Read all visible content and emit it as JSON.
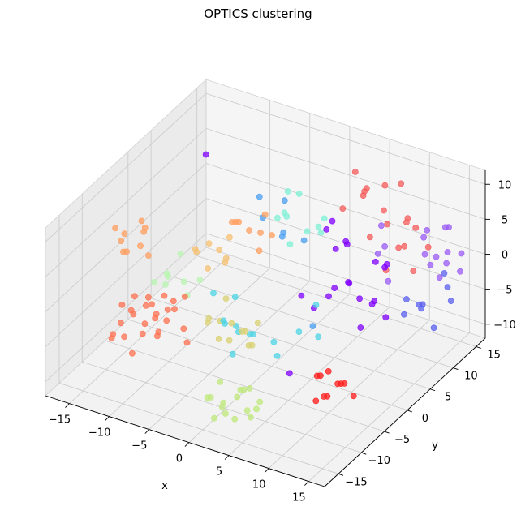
{
  "chart_data": {
    "type": "scatter",
    "title": "OPTICS clustering",
    "xlabel": "x",
    "ylabel": "y",
    "zlabel": "",
    "xlim": [
      -18,
      17
    ],
    "ylim": [
      -18,
      17
    ],
    "zlim": [
      -12,
      12
    ],
    "xticks": [
      -15,
      -10,
      -5,
      0,
      5,
      10,
      15
    ],
    "yticks": [
      -15,
      -10,
      -5,
      0,
      5,
      10,
      15
    ],
    "zticks": [
      -10,
      -5,
      0,
      5,
      10
    ],
    "grid": true,
    "marker_alpha": 0.75,
    "clusters": [
      {
        "color": "#8000ff",
        "points": [
          [
            4,
            5,
            6
          ],
          [
            6,
            6,
            4
          ],
          [
            8,
            3,
            1
          ],
          [
            10,
            5,
            -2
          ],
          [
            5,
            8,
            -3
          ],
          [
            7,
            7,
            -4
          ],
          [
            3,
            4,
            -5
          ],
          [
            9,
            9,
            0
          ],
          [
            11,
            6,
            3
          ],
          [
            6,
            2,
            -1
          ],
          [
            4,
            7,
            2
          ],
          [
            8,
            8,
            -5
          ],
          [
            7,
            4,
            6
          ],
          [
            2,
            3,
            -3
          ],
          [
            10,
            2,
            -4
          ],
          [
            5,
            5,
            -2
          ],
          [
            -14,
            10,
            7
          ],
          [
            8,
            -10,
            -4
          ],
          [
            3,
            8,
            5
          ],
          [
            12,
            4,
            -3
          ],
          [
            9,
            7,
            2
          ]
        ]
      },
      {
        "color": "#5a5ff0",
        "points": [
          [
            12,
            12,
            -6
          ],
          [
            13,
            10,
            -5
          ],
          [
            14,
            14,
            -4
          ],
          [
            11,
            13,
            -7
          ],
          [
            13,
            15,
            -3
          ],
          [
            12,
            8,
            -5
          ],
          [
            14,
            11,
            -8
          ],
          [
            10,
            12,
            -6
          ],
          [
            15,
            13,
            -5
          ]
        ]
      },
      {
        "color": "#9a5af5",
        "points": [
          [
            13,
            16,
            3
          ],
          [
            14,
            14,
            1
          ],
          [
            12,
            15,
            -1
          ],
          [
            15,
            15,
            -2
          ],
          [
            11,
            14,
            2
          ],
          [
            13,
            12,
            0
          ],
          [
            14,
            17,
            -1
          ],
          [
            12,
            13,
            4
          ],
          [
            10,
            16,
            -2
          ],
          [
            15,
            12,
            1
          ],
          [
            13,
            14,
            -3
          ],
          [
            12,
            17,
            2
          ],
          [
            9,
            9,
            3
          ],
          [
            8,
            10,
            5
          ],
          [
            10,
            8,
            -1
          ],
          [
            7,
            11,
            0
          ]
        ]
      },
      {
        "color": "#4a9ef0",
        "points": [
          [
            -6,
            13,
            -3
          ],
          [
            -8,
            12,
            -1
          ],
          [
            -4,
            14,
            -4
          ],
          [
            -7,
            15,
            0
          ],
          [
            -5,
            11,
            -2
          ],
          [
            -9,
            13,
            1
          ],
          [
            4,
            2,
            -6
          ]
        ]
      },
      {
        "color": "#4dd4e4",
        "points": [
          [
            -3,
            -5,
            -4
          ],
          [
            -1,
            -3,
            -6
          ],
          [
            -4,
            -1,
            -3
          ],
          [
            -2,
            -7,
            -2
          ],
          [
            0,
            -4,
            -5
          ],
          [
            -3,
            -2,
            -7
          ],
          [
            -1,
            -6,
            -3
          ],
          [
            -5,
            -4,
            -1
          ],
          [
            2,
            -3,
            -6
          ],
          [
            -2,
            -5,
            -8
          ],
          [
            5,
            1,
            -2
          ],
          [
            7,
            -2,
            -4
          ],
          [
            3,
            -4,
            -7
          ],
          [
            4,
            -1,
            -5
          ]
        ]
      },
      {
        "color": "#7ff0d6",
        "points": [
          [
            -1,
            5,
            6
          ],
          [
            1,
            6,
            4
          ],
          [
            -2,
            7,
            8
          ],
          [
            0,
            4,
            3
          ],
          [
            2,
            8,
            5
          ],
          [
            -1,
            3,
            7
          ],
          [
            1,
            9,
            2
          ],
          [
            3,
            5,
            6
          ],
          [
            -3,
            8,
            4
          ],
          [
            0,
            6,
            9
          ]
        ]
      },
      {
        "color": "#b8f5b0",
        "points": [
          [
            -12,
            -2,
            -2
          ],
          [
            -11,
            0,
            -4
          ],
          [
            -13,
            -3,
            -3
          ],
          [
            -10,
            -1,
            -5
          ],
          [
            -12,
            1,
            -1
          ],
          [
            -11,
            -4,
            -2
          ],
          [
            -9,
            0,
            -3
          ],
          [
            -13,
            0,
            -4
          ]
        ]
      },
      {
        "color": "#bfe87a",
        "points": [
          [
            2,
            -14,
            -8
          ],
          [
            3,
            -12,
            -7
          ],
          [
            4,
            -15,
            -9
          ],
          [
            1,
            -13,
            -6
          ],
          [
            5,
            -14,
            -8
          ],
          [
            3,
            -16,
            -7
          ],
          [
            2,
            -11,
            -9
          ],
          [
            4,
            -13,
            -6
          ],
          [
            6,
            -15,
            -8
          ],
          [
            1,
            -15,
            -7
          ],
          [
            5,
            -12,
            -9
          ],
          [
            3,
            -10,
            -8
          ],
          [
            4,
            -17,
            -7
          ],
          [
            2,
            -16,
            -9
          ],
          [
            6,
            -13,
            -7
          ],
          [
            0,
            -14,
            -8
          ]
        ]
      },
      {
        "color": "#d8d070",
        "points": [
          [
            -3,
            -6,
            -3
          ],
          [
            -1,
            -4,
            -5
          ],
          [
            -4,
            -3,
            -2
          ],
          [
            -2,
            -8,
            -4
          ],
          [
            0,
            -5,
            -6
          ],
          [
            -3,
            -4,
            -7
          ],
          [
            -1,
            -7,
            -2
          ],
          [
            -5,
            -5,
            -4
          ],
          [
            1,
            -6,
            -5
          ],
          [
            -2,
            -3,
            -6
          ],
          [
            -4,
            -7,
            -3
          ],
          [
            0,
            -3,
            -4
          ]
        ]
      },
      {
        "color": "#f5c070",
        "points": [
          [
            -9,
            2,
            1
          ],
          [
            -8,
            0,
            -1
          ],
          [
            -7,
            3,
            2
          ],
          [
            -10,
            1,
            0
          ],
          [
            -6,
            -1,
            3
          ],
          [
            -8,
            4,
            -2
          ],
          [
            -9,
            -1,
            2
          ],
          [
            -7,
            2,
            -1
          ]
        ]
      },
      {
        "color": "#ff9f5f",
        "points": [
          [
            -15,
            -6,
            5
          ],
          [
            -13,
            -5,
            6
          ],
          [
            -14,
            -8,
            4
          ],
          [
            -12,
            -7,
            7
          ],
          [
            -16,
            -5,
            3
          ],
          [
            -13,
            -9,
            5
          ],
          [
            -14,
            -4,
            6
          ],
          [
            -12,
            -6,
            3
          ],
          [
            -15,
            -8,
            7
          ],
          [
            -13,
            -6,
            4
          ],
          [
            -8,
            6,
            2
          ],
          [
            -6,
            8,
            0
          ],
          [
            -7,
            5,
            3
          ],
          [
            -9,
            7,
            1
          ],
          [
            -5,
            6,
            -1
          ],
          [
            -6,
            9,
            2
          ],
          [
            -4,
            7,
            1
          ],
          [
            -8,
            9,
            -1
          ]
        ]
      },
      {
        "color": "#ff7050",
        "points": [
          [
            -12,
            -9,
            -1
          ],
          [
            -11,
            -7,
            -3
          ],
          [
            -13,
            -10,
            -2
          ],
          [
            -10,
            -8,
            -4
          ],
          [
            -12,
            -6,
            -3
          ],
          [
            -11,
            -11,
            -2
          ],
          [
            -9,
            -9,
            -5
          ],
          [
            -13,
            -8,
            -4
          ],
          [
            -10,
            -10,
            -1
          ],
          [
            -12,
            -12,
            -3
          ],
          [
            -11,
            -13,
            -4
          ],
          [
            -9,
            -12,
            -2
          ],
          [
            -13,
            -12,
            -5
          ],
          [
            -10,
            -6,
            -2
          ],
          [
            -8,
            -9,
            -3
          ],
          [
            -11,
            -9,
            -6
          ],
          [
            -7,
            -7,
            -5
          ],
          [
            -12,
            -14,
            -4
          ],
          [
            -10,
            -13,
            -6
          ],
          [
            -8,
            -11,
            -4
          ],
          [
            -11,
            -6,
            -5
          ],
          [
            -9,
            -7,
            -3
          ],
          [
            -6,
            -8,
            -6
          ],
          [
            -7,
            -9,
            -1
          ],
          [
            -10,
            -4,
            -4
          ],
          [
            -8,
            -5,
            -2
          ]
        ]
      },
      {
        "color": "#f55a5a",
        "points": [
          [
            4,
            13,
            6
          ],
          [
            6,
            14,
            4
          ],
          [
            5,
            12,
            8
          ],
          [
            3,
            15,
            5
          ],
          [
            7,
            13,
            3
          ],
          [
            5,
            16,
            6
          ],
          [
            9,
            12,
            1
          ],
          [
            10,
            14,
            3
          ],
          [
            2,
            12,
            4
          ],
          [
            11,
            15,
            0
          ],
          [
            7,
            16,
            7
          ],
          [
            3,
            13,
            9
          ],
          [
            8,
            11,
            -2
          ],
          [
            10,
            12,
            5
          ],
          [
            8,
            15,
            -1
          ],
          [
            6,
            11,
            2
          ],
          [
            12,
            10,
            0
          ],
          [
            9,
            14,
            4
          ]
        ]
      },
      {
        "color": "#ff1a1a",
        "points": [
          [
            9,
            -5,
            -7
          ],
          [
            11,
            -4,
            -8
          ],
          [
            10,
            -6,
            -9
          ],
          [
            8,
            -4,
            -8
          ],
          [
            12,
            -5,
            -7
          ],
          [
            10,
            -3,
            -9
          ],
          [
            11,
            -7,
            -8
          ],
          [
            9,
            -6,
            -10
          ],
          [
            10,
            -5,
            -6
          ],
          [
            12,
            -3,
            -10
          ]
        ]
      }
    ]
  }
}
